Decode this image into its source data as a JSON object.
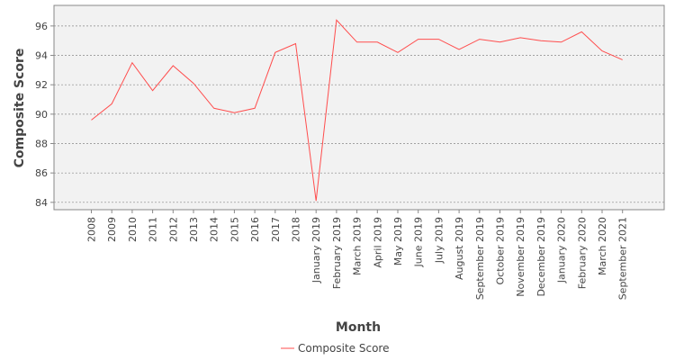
{
  "chart_data": {
    "type": "line",
    "title": "",
    "xlabel": "Month",
    "ylabel": "Composite Score",
    "ylim": [
      83.5,
      97.4
    ],
    "yticks": [
      84,
      86,
      88,
      90,
      92,
      94,
      96
    ],
    "grid": true,
    "legend_position": "bottom",
    "categories": [
      "2008",
      "2009",
      "2010",
      "2011",
      "2012",
      "2013",
      "2014",
      "2015",
      "2016",
      "2017",
      "2018",
      "January 2019",
      "February 2019",
      "March 2019",
      "April 2019",
      "May 2019",
      "June 2019",
      "July 2019",
      "August 2019",
      "September 2019",
      "October 2019",
      "November 2019",
      "December 2019",
      "January 2020",
      "February 2020",
      "March 2020",
      "September 2021"
    ],
    "series": [
      {
        "name": "Composite Score",
        "color": "#ff4d4d",
        "values": [
          89.6,
          90.7,
          93.5,
          91.6,
          93.3,
          92.1,
          90.4,
          90.1,
          90.4,
          94.2,
          94.8,
          84.1,
          96.4,
          94.9,
          94.9,
          94.2,
          95.1,
          95.1,
          94.4,
          95.1,
          94.9,
          95.2,
          95.0,
          94.9,
          95.6,
          94.3,
          93.7
        ]
      }
    ]
  }
}
